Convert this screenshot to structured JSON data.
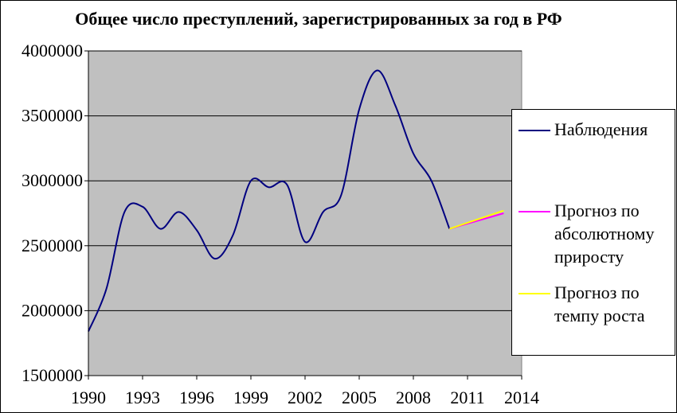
{
  "chart_data": {
    "type": "line",
    "title": "Общее число преступлений, зарегистрированных за год в РФ",
    "xlim": [
      1990,
      2014
    ],
    "ylim": [
      1500000,
      4000000
    ],
    "x_ticks": [
      "1990",
      "1993",
      "1996",
      "1999",
      "2002",
      "2005",
      "2008",
      "2011",
      "2014"
    ],
    "y_ticks": [
      "1500000",
      "2000000",
      "2500000",
      "3000000",
      "3500000",
      "4000000"
    ],
    "plot_background": "#c0c0c0",
    "grid": true,
    "legend_position": "right",
    "series": [
      {
        "name": "Наблюдения",
        "color": "#000080",
        "smooth": true,
        "x": [
          1990,
          1991,
          1992,
          1993,
          1994,
          1995,
          1996,
          1997,
          1998,
          1999,
          2000,
          2001,
          2002,
          2003,
          2004,
          2005,
          2006,
          2007,
          2008,
          2009,
          2010
        ],
        "y": [
          1840000,
          2170000,
          2760000,
          2800000,
          2630000,
          2760000,
          2620000,
          2400000,
          2580000,
          3000000,
          2950000,
          2970000,
          2530000,
          2760000,
          2890000,
          3550000,
          3850000,
          3580000,
          3210000,
          3000000,
          2630000
        ]
      },
      {
        "name": "Прогноз по абсолютному приросту",
        "color": "#ff00ff",
        "smooth": false,
        "x": [
          2010,
          2013
        ],
        "y": [
          2630000,
          2750000
        ]
      },
      {
        "name": "Прогноз по темпу роста",
        "color": "#ffff00",
        "smooth": false,
        "x": [
          2010,
          2013
        ],
        "y": [
          2630000,
          2770000
        ]
      }
    ]
  },
  "legend": [
    {
      "lines": [
        "Наблюдения"
      ]
    },
    {
      "lines": [
        "Прогноз по",
        "абсолютному",
        "приросту"
      ]
    },
    {
      "lines": [
        "Прогноз по",
        "темпу роста"
      ]
    }
  ]
}
